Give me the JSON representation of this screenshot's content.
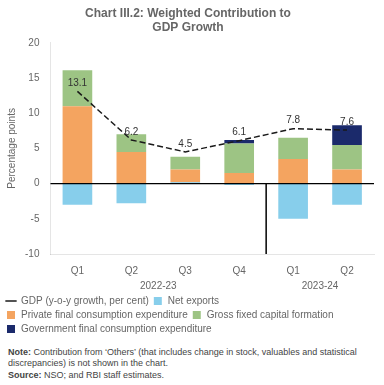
{
  "chart_data": {
    "type": "bar",
    "title": "Chart III.2: Weighted Contribution to\nGDP Growth",
    "y_label": "Percentage points",
    "categories": [
      "Q1",
      "Q2",
      "Q3",
      "Q4",
      "Q1",
      "Q2"
    ],
    "category_groups": [
      {
        "label": "2022-23",
        "span": 4
      },
      {
        "label": "2023-24",
        "span": 2
      }
    ],
    "series": [
      {
        "name": "Net exports",
        "type": "bar",
        "color": "#87CEEB",
        "values": [
          -3.0,
          -2.8,
          0.2,
          -0.2,
          -5.0,
          -3.0
        ]
      },
      {
        "name": "Private final consumption expenditure",
        "type": "bar",
        "color": "#F4A460",
        "values": [
          11.0,
          4.5,
          1.8,
          1.5,
          3.5,
          2.0
        ]
      },
      {
        "name": "Gross fixed capital formation",
        "type": "bar",
        "color": "#9DC484",
        "values": [
          5.1,
          2.5,
          1.8,
          4.2,
          3.0,
          3.5
        ]
      },
      {
        "name": "Government final consumption expenditure",
        "type": "bar",
        "color": "#1B2A6B",
        "values": [
          0.0,
          0.0,
          0.0,
          0.5,
          0.0,
          2.8
        ]
      },
      {
        "name": "GDP (y-o-y growth, per cent)",
        "type": "line",
        "color": "#1a1a1a",
        "line_style": "dashed",
        "data_labels": true,
        "values": [
          13.1,
          6.2,
          4.5,
          6.1,
          7.8,
          7.6
        ]
      }
    ],
    "stacked": true,
    "ylim": [
      -10,
      20
    ],
    "yticks": [
      -10,
      -5,
      0,
      5,
      10,
      15,
      20
    ],
    "grid": false,
    "legend": "bottom",
    "notes": [
      {
        "label": "Note:",
        "text": " Contribution from ‘Others’ (that includes change in stock, valuables and statistical discrepancies) is not shown in the chart."
      },
      {
        "label": "Source:",
        "text": " NSO; and RBI staff estimates."
      }
    ]
  }
}
